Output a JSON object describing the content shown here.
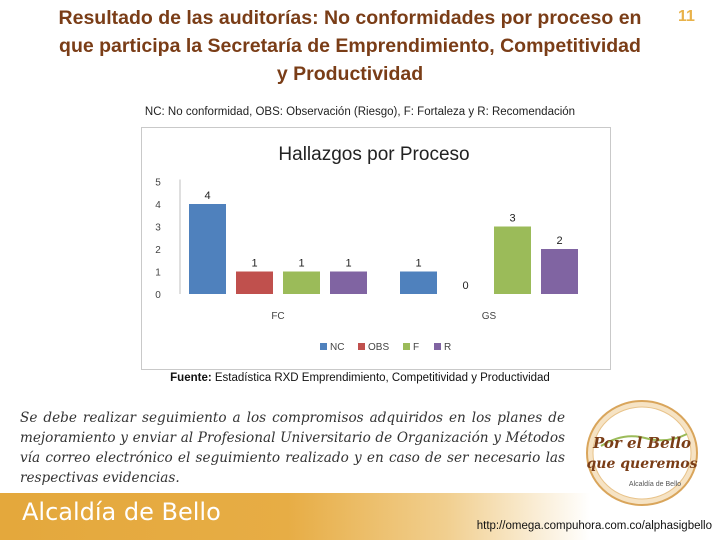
{
  "slide": {
    "title_lines": [
      "Resultado de las auditorías: No conformidades por proceso en",
      "que participa la Secretaría de Emprendimiento, Competitividad",
      "y Productividad"
    ],
    "page_number": "11",
    "legend_note": "NC: No conformidad, OBS: Observación (Riesgo), F: Fortaleza y R: Recomendación",
    "source_label": "Fuente:",
    "source_text": "Estadística RXD Emprendimiento, Competitividad y Productividad",
    "body_text": "Se debe realizar seguimiento a los compromisos adquiridos en los planes de mejoramiento y enviar al Profesional Universitario de Organización y Métodos vía correo electrónico el seguimiento realizado y en caso de ser necesario las respectivas evidencias.",
    "footer_brand": "Alcaldía de Bello",
    "footer_url": "http://omega.compuhora.com.co/alphasigbello",
    "seal_text": [
      "Por el Bello",
      "que queremos",
      "Alcaldía de Bello"
    ]
  },
  "colors": {
    "title": "#7a3d17",
    "NC": "#4f81bd",
    "OBS": "#c0504d",
    "F": "#9bbb59",
    "R": "#8064a2",
    "footer": "#e4a83c"
  },
  "chart_data": {
    "type": "bar",
    "title": "Hallazgos por Proceso",
    "categories": [
      "FC",
      "GS"
    ],
    "series": [
      {
        "name": "NC",
        "values": [
          4,
          1
        ]
      },
      {
        "name": "OBS",
        "values": [
          1,
          0
        ]
      },
      {
        "name": "F",
        "values": [
          1,
          3
        ]
      },
      {
        "name": "R",
        "values": [
          1,
          2
        ]
      }
    ],
    "y_ticks": [
      "0",
      "1",
      "2",
      "3",
      "4",
      "5"
    ],
    "ylim": [
      0,
      5
    ],
    "grid": false,
    "legend_position": "bottom"
  }
}
